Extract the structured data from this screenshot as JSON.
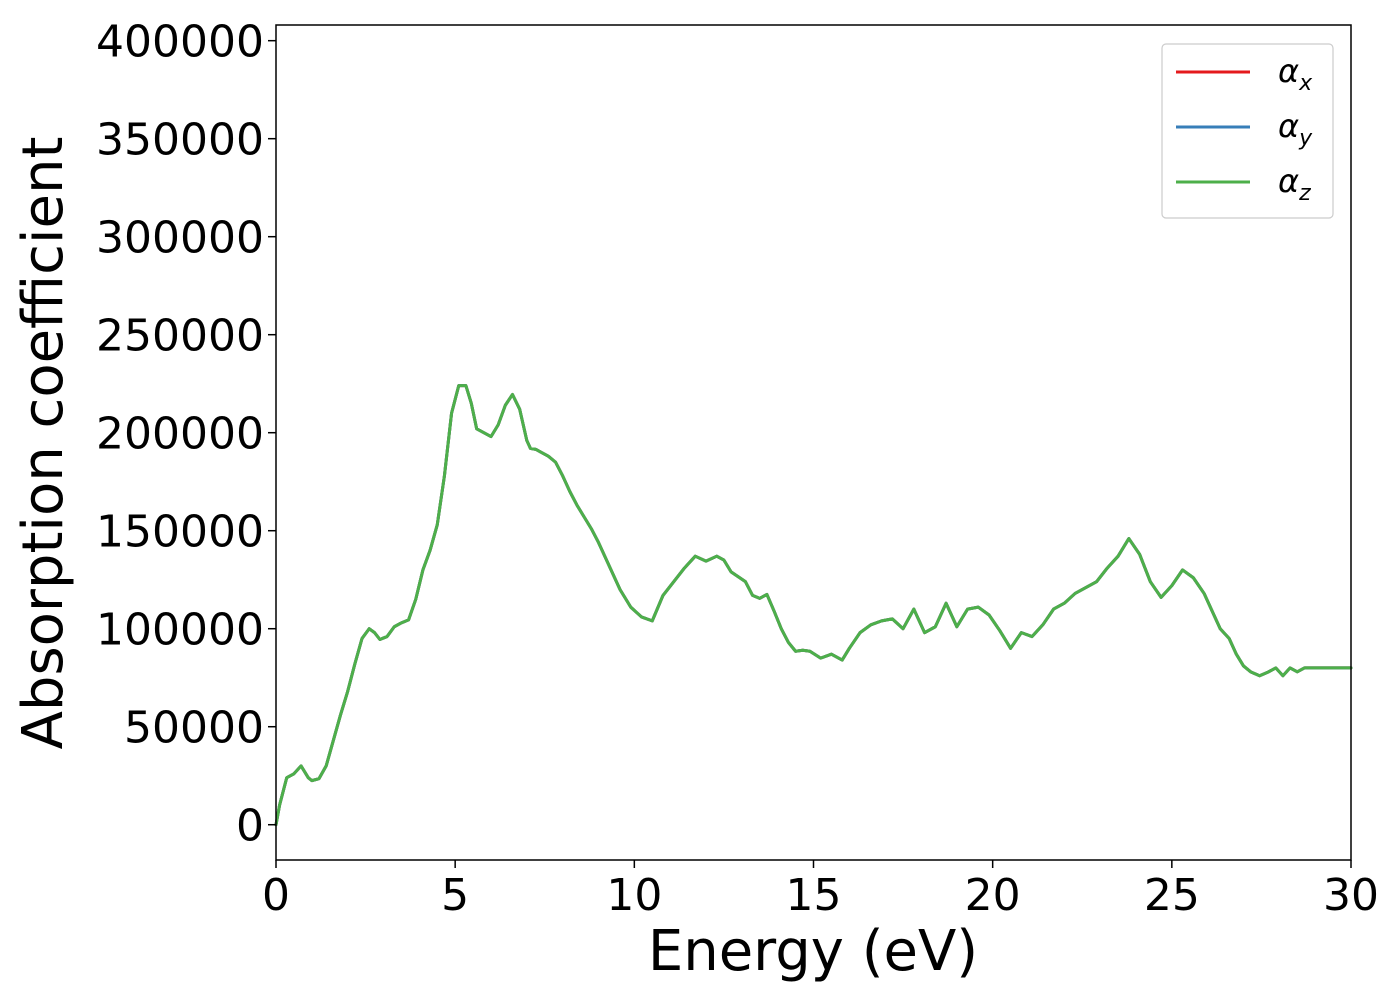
{
  "chart_data": {
    "type": "line",
    "xlabel": "Energy (eV)",
    "ylabel": "Absorption coefficient",
    "xlim": [
      0,
      30
    ],
    "ylim": [
      -18000,
      408000
    ],
    "xticks": [
      0,
      5,
      10,
      15,
      20,
      25,
      30
    ],
    "yticks": [
      0,
      50000,
      100000,
      150000,
      200000,
      250000,
      300000,
      350000,
      400000
    ],
    "xtick_labels": [
      "0",
      "5",
      "10",
      "15",
      "20",
      "25",
      "30"
    ],
    "ytick_labels": [
      "0",
      "50000",
      "100000",
      "150000",
      "200000",
      "250000",
      "300000",
      "350000",
      "400000"
    ],
    "grid": false,
    "legend_position": "top-right",
    "x": [
      0,
      0.1,
      0.3,
      0.5,
      0.7,
      0.8,
      0.9,
      1.0,
      1.2,
      1.4,
      1.6,
      1.8,
      2.0,
      2.2,
      2.4,
      2.6,
      2.75,
      2.9,
      3.1,
      3.3,
      3.5,
      3.7,
      3.9,
      4.1,
      4.3,
      4.5,
      4.7,
      4.9,
      5.1,
      5.3,
      5.45,
      5.6,
      5.8,
      6.0,
      6.2,
      6.4,
      6.6,
      6.8,
      7.0,
      7.1,
      7.25,
      7.4,
      7.6,
      7.8,
      8.0,
      8.2,
      8.4,
      8.6,
      8.8,
      9.0,
      9.3,
      9.6,
      9.9,
      10.2,
      10.5,
      10.8,
      11.1,
      11.4,
      11.7,
      12.0,
      12.3,
      12.5,
      12.7,
      12.9,
      13.1,
      13.3,
      13.5,
      13.7,
      13.9,
      14.1,
      14.3,
      14.5,
      14.7,
      14.9,
      15.2,
      15.5,
      15.8,
      16.0,
      16.3,
      16.6,
      16.9,
      17.2,
      17.5,
      17.8,
      18.1,
      18.4,
      18.7,
      19.0,
      19.3,
      19.6,
      19.9,
      20.2,
      20.5,
      20.8,
      21.1,
      21.4,
      21.7,
      22.0,
      22.3,
      22.6,
      22.9,
      23.2,
      23.5,
      23.8,
      24.1,
      24.4,
      24.7,
      25.0,
      25.3,
      25.6,
      25.9,
      26.1,
      26.35,
      26.6,
      26.8,
      27.0,
      27.2,
      27.45,
      27.7,
      27.9,
      28.1,
      28.3,
      28.5,
      28.7,
      28.9,
      29.1,
      29.3,
      29.5,
      29.7,
      30.0
    ],
    "series": [
      {
        "name": "αx",
        "color": "#e41a1c",
        "y": [
          0,
          10000,
          24000,
          26000,
          30000,
          27000,
          24000,
          22500,
          23500,
          30000,
          43000,
          56000,
          68000,
          82000,
          95000,
          100000,
          98000,
          94500,
          96000,
          101000,
          103000,
          104500,
          115000,
          130000,
          140000,
          153000,
          178000,
          210000,
          224000,
          224000,
          215000,
          202000,
          200000,
          198000,
          204000,
          214000,
          219500,
          212000,
          196000,
          192000,
          191500,
          190000,
          188000,
          185000,
          178000,
          170000,
          163000,
          157000,
          151000,
          144000,
          132000,
          120000,
          111000,
          106000,
          104000,
          117000,
          124000,
          131000,
          137000,
          134500,
          137000,
          135000,
          129000,
          126500,
          124000,
          117000,
          115500,
          117500,
          109000,
          100000,
          93000,
          88500,
          89000,
          88500,
          85000,
          87000,
          84000,
          90000,
          98000,
          102000,
          104000,
          105000,
          100000,
          110000,
          98000,
          101000,
          113000,
          101000,
          110000,
          111000,
          107000,
          99000,
          90000,
          98000,
          96000,
          102000,
          110000,
          113000,
          118000,
          121000,
          124000,
          131000,
          137000,
          146000,
          138000,
          124000,
          116000,
          122000,
          130000,
          126000,
          118000,
          110000,
          100000,
          95000,
          87000,
          81000,
          78000,
          76000,
          78000,
          80000,
          76000,
          80000,
          78000,
          80000,
          80000,
          80000,
          80000,
          80000,
          80000,
          80000
        ]
      },
      {
        "name": "αy",
        "color": "#377eb8",
        "y": [
          0,
          10000,
          24000,
          26000,
          30000,
          27000,
          24000,
          22500,
          23500,
          30000,
          43000,
          56000,
          68000,
          82000,
          95000,
          100000,
          98000,
          94500,
          96000,
          101000,
          103000,
          104500,
          115000,
          130000,
          140000,
          153000,
          178000,
          210000,
          224000,
          224000,
          215000,
          202000,
          200000,
          198000,
          204000,
          214000,
          219500,
          212000,
          196000,
          192000,
          191500,
          190000,
          188000,
          185000,
          178000,
          170000,
          163000,
          157000,
          151000,
          144000,
          132000,
          120000,
          111000,
          106000,
          104000,
          117000,
          124000,
          131000,
          137000,
          134500,
          137000,
          135000,
          129000,
          126500,
          124000,
          117000,
          115500,
          117500,
          109000,
          100000,
          93000,
          88500,
          89000,
          88500,
          85000,
          87000,
          84000,
          90000,
          98000,
          102000,
          104000,
          105000,
          100000,
          110000,
          98000,
          101000,
          113000,
          101000,
          110000,
          111000,
          107000,
          99000,
          90000,
          98000,
          96000,
          102000,
          110000,
          113000,
          118000,
          121000,
          124000,
          131000,
          137000,
          146000,
          138000,
          124000,
          116000,
          122000,
          130000,
          126000,
          118000,
          110000,
          100000,
          95000,
          87000,
          81000,
          78000,
          76000,
          78000,
          80000,
          76000,
          80000,
          78000,
          80000,
          80000,
          80000,
          80000,
          80000,
          80000,
          80000
        ]
      },
      {
        "name": "αz",
        "color": "#4daf4a",
        "y": [
          0,
          10000,
          24000,
          26000,
          30000,
          27000,
          24000,
          22500,
          23500,
          30000,
          43000,
          56000,
          68000,
          82000,
          95000,
          100000,
          98000,
          94500,
          96000,
          101000,
          103000,
          104500,
          115000,
          130000,
          140000,
          153000,
          178000,
          210000,
          224000,
          224000,
          215000,
          202000,
          200000,
          198000,
          204000,
          214000,
          219500,
          212000,
          196000,
          192000,
          191500,
          190000,
          188000,
          185000,
          178000,
          170000,
          163000,
          157000,
          151000,
          144000,
          132000,
          120000,
          111000,
          106000,
          104000,
          117000,
          124000,
          131000,
          137000,
          134500,
          137000,
          135000,
          129000,
          126500,
          124000,
          117000,
          115500,
          117500,
          109000,
          100000,
          93000,
          88500,
          89000,
          88500,
          85000,
          87000,
          84000,
          90000,
          98000,
          102000,
          104000,
          105000,
          100000,
          110000,
          98000,
          101000,
          113000,
          101000,
          110000,
          111000,
          107000,
          99000,
          90000,
          98000,
          96000,
          102000,
          110000,
          113000,
          118000,
          121000,
          124000,
          131000,
          137000,
          146000,
          138000,
          124000,
          116000,
          122000,
          130000,
          126000,
          118000,
          110000,
          100000,
          95000,
          87000,
          81000,
          78000,
          76000,
          78000,
          80000,
          76000,
          80000,
          78000,
          80000,
          80000,
          80000,
          80000,
          80000,
          80000,
          80000
        ]
      }
    ],
    "legend": [
      {
        "symbol": "α",
        "sub": "x",
        "color": "#e41a1c"
      },
      {
        "symbol": "α",
        "sub": "y",
        "color": "#377eb8"
      },
      {
        "symbol": "α",
        "sub": "z",
        "color": "#4daf4a"
      }
    ]
  }
}
